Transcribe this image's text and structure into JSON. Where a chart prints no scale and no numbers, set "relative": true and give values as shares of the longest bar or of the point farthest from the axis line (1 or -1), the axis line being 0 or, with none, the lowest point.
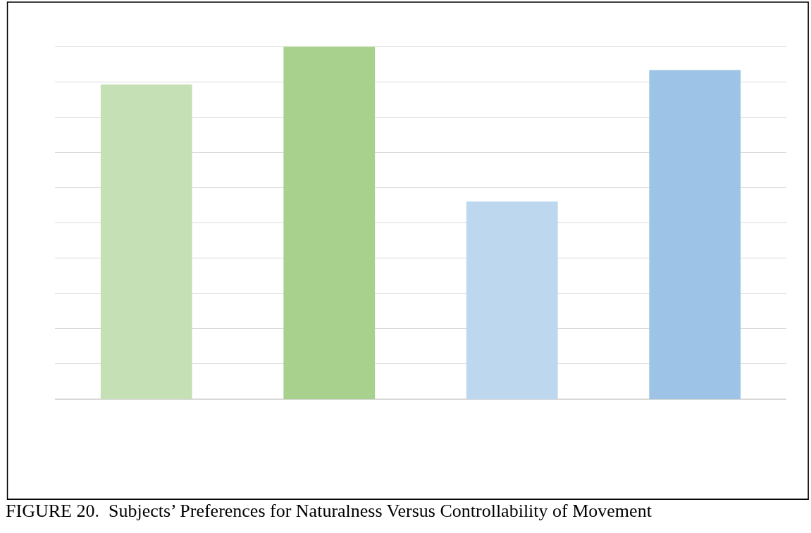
{
  "chart_data": {
    "type": "bar",
    "title": "FIGURE 20.  Subjects’ Preferences for Naturalness Versus Controllability of Movement",
    "categories": [
      null,
      null,
      null,
      null
    ],
    "values": [
      0.893,
      1,
      0.561,
      0.934
    ],
    "colors": [
      "#c5e0b4",
      "#a9d18e",
      "#bdd7ee",
      "#9dc3e6"
    ],
    "relative": true,
    "grid": "y"
  }
}
